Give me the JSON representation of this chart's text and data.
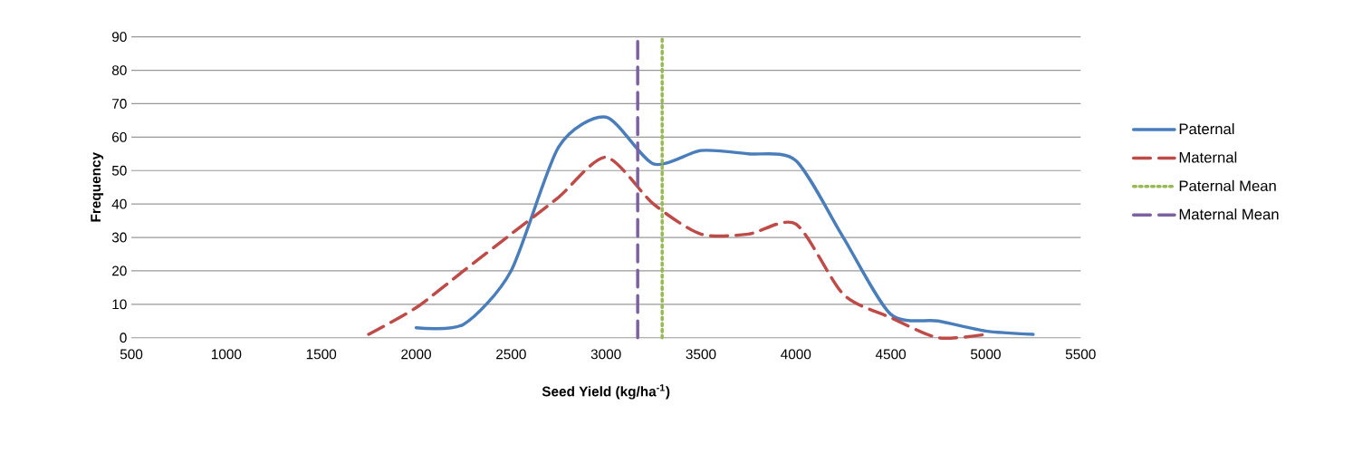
{
  "chart_data": {
    "type": "line",
    "xlabel": "Seed Yield (kg/ha$^{-1}$)",
    "ylabel": "Frequency",
    "series": [
      {
        "name": "Paternal",
        "color": "#4a7ebb",
        "line_style": "solid",
        "x": [
          2000,
          2250,
          2500,
          2750,
          3000,
          3250,
          3500,
          3750,
          4000,
          4250,
          4500,
          4750,
          5000,
          5250
        ],
        "values": [
          3,
          4,
          20,
          57,
          66,
          52,
          56,
          55,
          53,
          30,
          7,
          5,
          2,
          1
        ]
      },
      {
        "name": "Maternal",
        "color": "#be4b48",
        "line_style": "dashed",
        "x": [
          1750,
          2000,
          2250,
          2500,
          2750,
          3000,
          3250,
          3500,
          3750,
          4000,
          4250,
          4500,
          4750,
          5000
        ],
        "values": [
          1,
          9,
          20,
          31,
          42,
          54,
          40,
          31,
          31,
          34,
          13,
          6,
          0,
          1
        ]
      },
      {
        "name": "Paternal Mean",
        "color": "#98b954",
        "line_style": "dotted",
        "x": [
          3296,
          3296
        ],
        "values": [
          0,
          90
        ]
      },
      {
        "name": "Maternal Mean",
        "color": "#7d60a0",
        "line_style": "dashed",
        "x": [
          3167,
          3167
        ],
        "values": [
          0,
          90
        ]
      }
    ],
    "xlim": [
      500,
      5500
    ],
    "xticks": [
      500,
      1000,
      1500,
      2000,
      2500,
      3000,
      3500,
      4000,
      4500,
      5000,
      5500
    ],
    "ylim": [
      0,
      90
    ],
    "yticks": [
      0,
      10,
      20,
      30,
      40,
      50,
      60,
      70,
      80,
      90
    ],
    "grid": "y",
    "legend": "right"
  }
}
